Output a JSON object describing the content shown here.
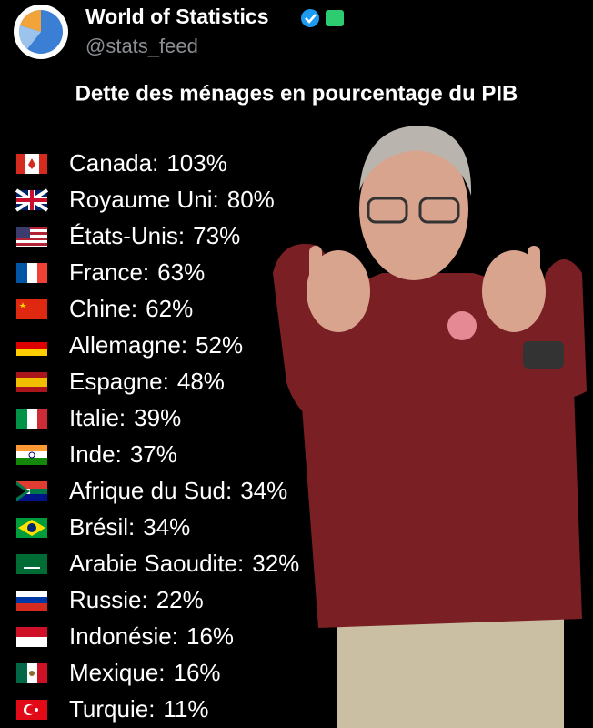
{
  "header": {
    "name": "World of Statistics",
    "handle": "@stats_feed"
  },
  "title": "Dette des ménages en pourcentage du PIB",
  "items": [
    {
      "label": "Canada:",
      "value": "103%"
    },
    {
      "label": "Royaume Uni:",
      "value": "80%"
    },
    {
      "label": "États-Unis:",
      "value": "73%"
    },
    {
      "label": "France:",
      "value": "63%"
    },
    {
      "label": "Chine:",
      "value": "62%"
    },
    {
      "label": "Allemagne:",
      "value": "52%"
    },
    {
      "label": "Espagne:",
      "value": "48%"
    },
    {
      "label": "Italie:",
      "value": "39%"
    },
    {
      "label": "Inde:",
      "value": "37%"
    },
    {
      "label": "Afrique du Sud:",
      "value": "34%"
    },
    {
      "label": "Brésil:",
      "value": "34%"
    },
    {
      "label": "Arabie Saoudite:",
      "value": "32%"
    },
    {
      "label": "Russie:",
      "value": "22%"
    },
    {
      "label": "Indonésie:",
      "value": "16%"
    },
    {
      "label": "Mexique:",
      "value": "16%"
    },
    {
      "label": "Turquie:",
      "value": "11%"
    }
  ]
}
